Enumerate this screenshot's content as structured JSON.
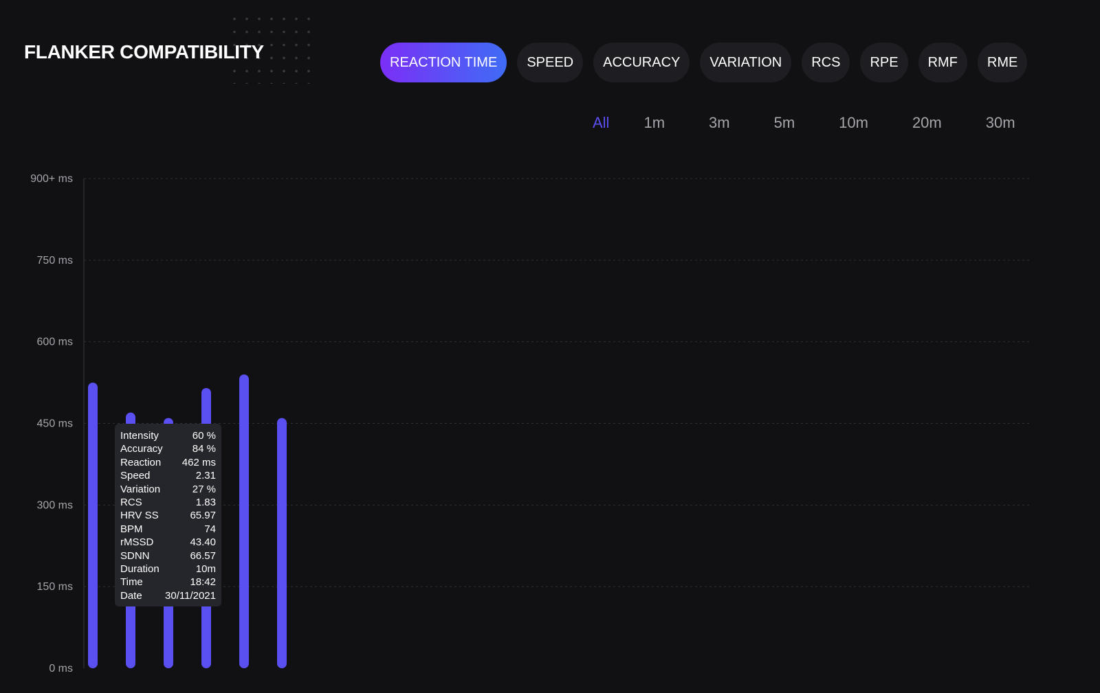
{
  "header": {
    "title": "FLANKER COMPATIBILITY"
  },
  "metric_tabs": [
    {
      "label": "REACTION TIME",
      "active": true
    },
    {
      "label": "SPEED",
      "active": false
    },
    {
      "label": "ACCURACY",
      "active": false
    },
    {
      "label": "VARIATION",
      "active": false
    },
    {
      "label": "RCS",
      "active": false
    },
    {
      "label": "RPE",
      "active": false
    },
    {
      "label": "RMF",
      "active": false
    },
    {
      "label": "RME",
      "active": false
    }
  ],
  "time_ranges": [
    {
      "label": "All",
      "active": true
    },
    {
      "label": "1m",
      "active": false
    },
    {
      "label": "3m",
      "active": false
    },
    {
      "label": "5m",
      "active": false
    },
    {
      "label": "10m",
      "active": false
    },
    {
      "label": "20m",
      "active": false
    },
    {
      "label": "30m",
      "active": false
    }
  ],
  "colors": {
    "accent": "#5a4ff0",
    "gradient_start": "#7b2ff7",
    "gradient_end": "#3f6cf5",
    "background": "#111114"
  },
  "chart_data": {
    "type": "bar",
    "categories": [
      "",
      "",
      "",
      "",
      "",
      ""
    ],
    "values": [
      525,
      470,
      460,
      515,
      540,
      460
    ],
    "ylim": [
      0,
      900
    ],
    "yticks": [
      "0 ms",
      "150 ms",
      "300 ms",
      "450 ms",
      "600 ms",
      "750 ms",
      "900+ ms"
    ],
    "grid": true
  },
  "tooltip": {
    "rows": [
      {
        "label": "Intensity",
        "value": "60 %"
      },
      {
        "label": "Accuracy",
        "value": "84 %"
      },
      {
        "label": "Reaction",
        "value": "462 ms"
      },
      {
        "label": "Speed",
        "value": "2.31"
      },
      {
        "label": "Variation",
        "value": "27 %"
      },
      {
        "label": "RCS",
        "value": "1.83"
      },
      {
        "label": "HRV SS",
        "value": "65.97"
      },
      {
        "label": "BPM",
        "value": "74"
      },
      {
        "label": "rMSSD",
        "value": "43.40"
      },
      {
        "label": "SDNN",
        "value": "66.57"
      },
      {
        "label": "Duration",
        "value": "10m"
      },
      {
        "label": "Time",
        "value": "18:42"
      },
      {
        "label": "Date",
        "value": "30/11/2021"
      }
    ]
  }
}
